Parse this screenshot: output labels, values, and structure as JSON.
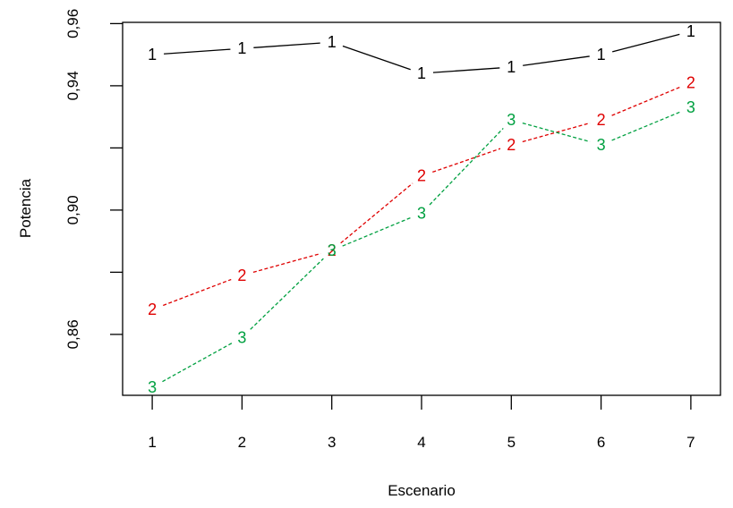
{
  "chart_data": {
    "type": "line",
    "title": "",
    "xlabel": "Escenario",
    "ylabel": "Potencia",
    "x": [
      1,
      2,
      3,
      4,
      5,
      6,
      7
    ],
    "xlim": [
      0.67,
      7.33
    ],
    "ylim": [
      0.8404,
      0.9604
    ],
    "y_ticks": [
      "0,86",
      "0,90",
      "0,94",
      "0,96"
    ],
    "y_tick_values": [
      0.86,
      0.9,
      0.94,
      0.96
    ],
    "y_minor_ticks": [
      0.88,
      0.92
    ],
    "x_ticks": [
      "1",
      "2",
      "3",
      "4",
      "5",
      "6",
      "7"
    ],
    "grid": false,
    "legend": "none",
    "series": [
      {
        "marker": "1",
        "color": "#000000",
        "dash": "solid",
        "values": [
          0.95,
          0.952,
          0.954,
          0.944,
          0.946,
          0.95,
          0.9575
        ]
      },
      {
        "marker": "2",
        "color": "#DF0000",
        "dash": "dashed",
        "values": [
          0.868,
          0.879,
          0.887,
          0.911,
          0.921,
          0.929,
          0.941
        ]
      },
      {
        "marker": "3",
        "color": "#00A040",
        "dash": "dashed",
        "values": [
          0.843,
          0.859,
          0.887,
          0.899,
          0.929,
          0.921,
          0.933
        ]
      }
    ]
  }
}
